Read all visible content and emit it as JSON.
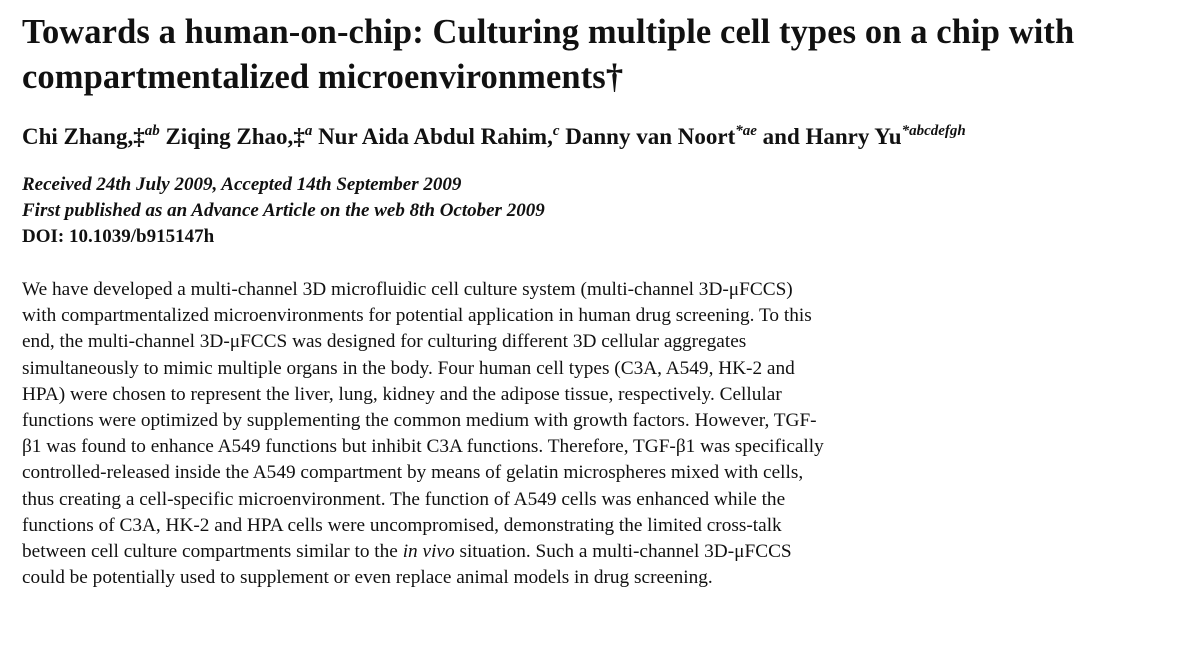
{
  "article": {
    "title_lines": [
      "Towards a human-on-chip: Culturing multiple cell types on a chip with",
      "compartmentalized microenvironments†"
    ],
    "authors": [
      {
        "name": "Chi Zhang,",
        "mark": "‡",
        "sup": "ab"
      },
      {
        "name": "Ziqing Zhao,",
        "mark": "‡",
        "sup": "a"
      },
      {
        "name": "Nur Aida Abdul Rahim,",
        "mark": "",
        "sup": "c"
      },
      {
        "name": "Danny van Noort",
        "mark": "",
        "sup": "*ae"
      },
      {
        "name": "and Hanry Yu",
        "mark": "",
        "sup": "*abcdefgh"
      }
    ],
    "received": "Received 24th July 2009, Accepted 14th September 2009",
    "published": "First published as an Advance Article on the web 8th October 2009",
    "doi": "DOI: 10.1039/b915147h",
    "abstract_lines": [
      "We have developed a multi-channel 3D microfluidic cell culture system (multi-channel 3D-μFCCS)",
      "with compartmentalized microenvironments for potential application in human drug screening. To this",
      "end, the multi-channel 3D-μFCCS was designed for culturing different 3D cellular aggregates",
      "simultaneously to mimic multiple organs in the body. Four human cell types (C3A, A549, HK-2 and",
      "HPA) were chosen to represent the liver, lung, kidney and the adipose tissue, respectively. Cellular",
      "functions were optimized by supplementing the common medium with growth factors. However, TGF-",
      "β1 was found to enhance A549 functions but inhibit C3A functions. Therefore, TGF-β1 was specifically",
      "controlled-released inside the A549 compartment by means of gelatin microspheres mixed with cells,",
      "thus creating a cell-specific microenvironment. The function of A549 cells was enhanced while the",
      "functions of C3A, HK-2 and HPA cells were uncompromised, demonstrating the limited cross-talk"
    ],
    "abstract_line_11": {
      "before": "between cell culture compartments similar to the ",
      "italic": "in vivo",
      "after": " situation. Such a multi-channel 3D-μFCCS"
    },
    "abstract_line_12": "could be potentially used to supplement or even replace animal models in drug screening."
  }
}
